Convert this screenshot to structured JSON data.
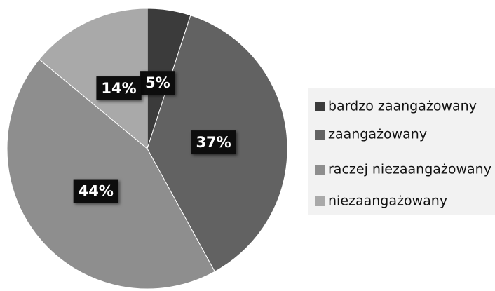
{
  "chart_data": {
    "type": "pie",
    "categories": [
      "bardzo zaangażowany",
      "zaangażowany",
      "raczej niezaangażowany",
      "niezaangażowany"
    ],
    "values": [
      5,
      37,
      44,
      14
    ],
    "value_labels": [
      "5%",
      "37%",
      "44%",
      "14%"
    ],
    "colors": [
      "#3b3b3b",
      "#626262",
      "#8e8e8e",
      "#a9a9a9"
    ],
    "legend": "right"
  }
}
